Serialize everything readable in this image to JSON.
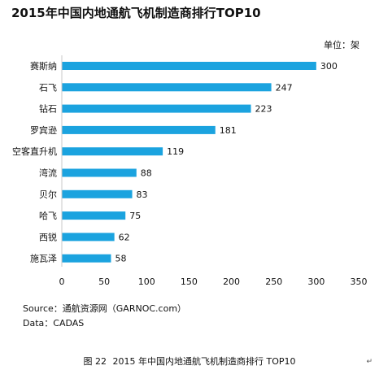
{
  "chart_data": {
    "type": "bar",
    "orientation": "horizontal",
    "title": "2015年中国内地通航飞机制造商排行TOP10",
    "unit_label": "单位：架",
    "categories": [
      "赛斯纳",
      "石飞",
      "钻石",
      "罗宾逊",
      "空客直升机",
      "湾流",
      "贝尔",
      "哈飞",
      "西锐",
      "施瓦泽"
    ],
    "values": [
      300,
      247,
      223,
      181,
      119,
      88,
      83,
      75,
      62,
      58
    ],
    "xlim": [
      0,
      350
    ],
    "xticks": [
      "0",
      "50",
      "100",
      "150",
      "200",
      "250",
      "300",
      "350"
    ],
    "bar_color": "#1BA3DF",
    "grid": false
  },
  "footer": {
    "source": "Source：通航资源网（GARNOC.com）",
    "data": "Data：CADAS"
  },
  "caption": {
    "figure": "图 22",
    "text": "2015 年中国内地通航飞机制造商排行 TOP10",
    "return_mark": "↵"
  }
}
